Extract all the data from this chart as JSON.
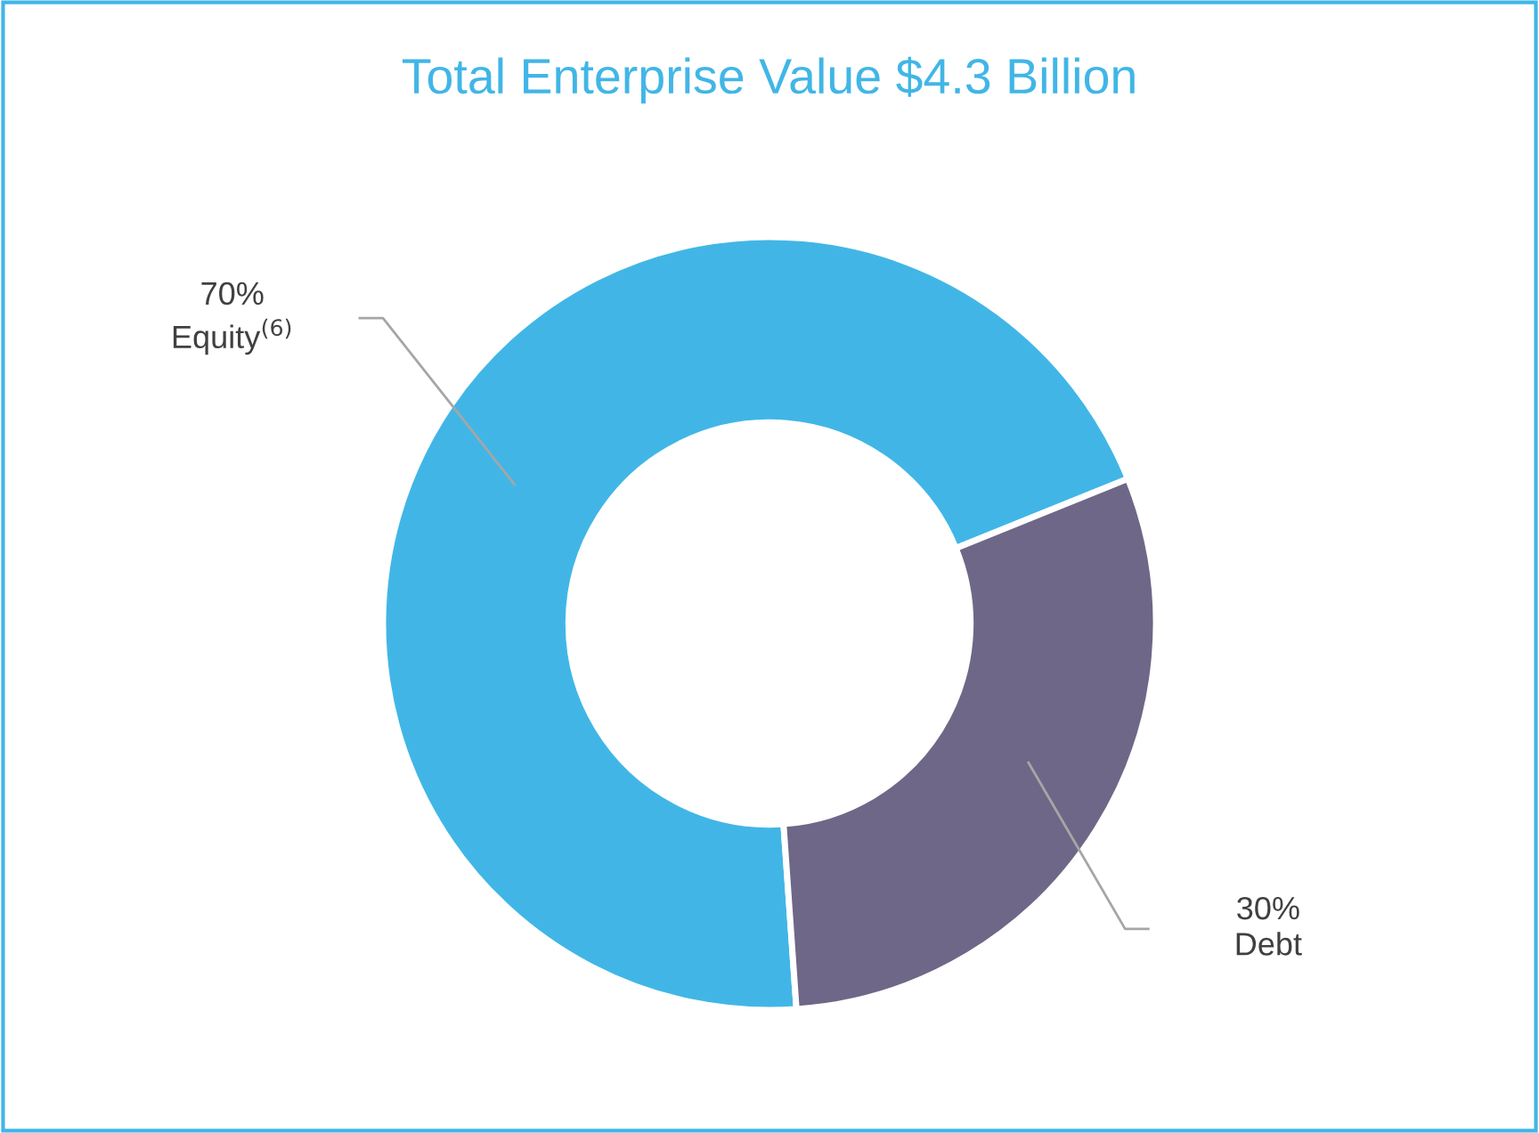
{
  "chart_data": {
    "type": "donut",
    "title": "Total Enterprise Value $4.3 Billion",
    "categories": [
      "Equity$^{(6)}$",
      "Debt"
    ],
    "values": [
      70,
      30
    ],
    "colors": [
      "#41b6e6",
      "#6e6787"
    ],
    "value_labels": [
      "70%",
      "30%"
    ]
  }
}
